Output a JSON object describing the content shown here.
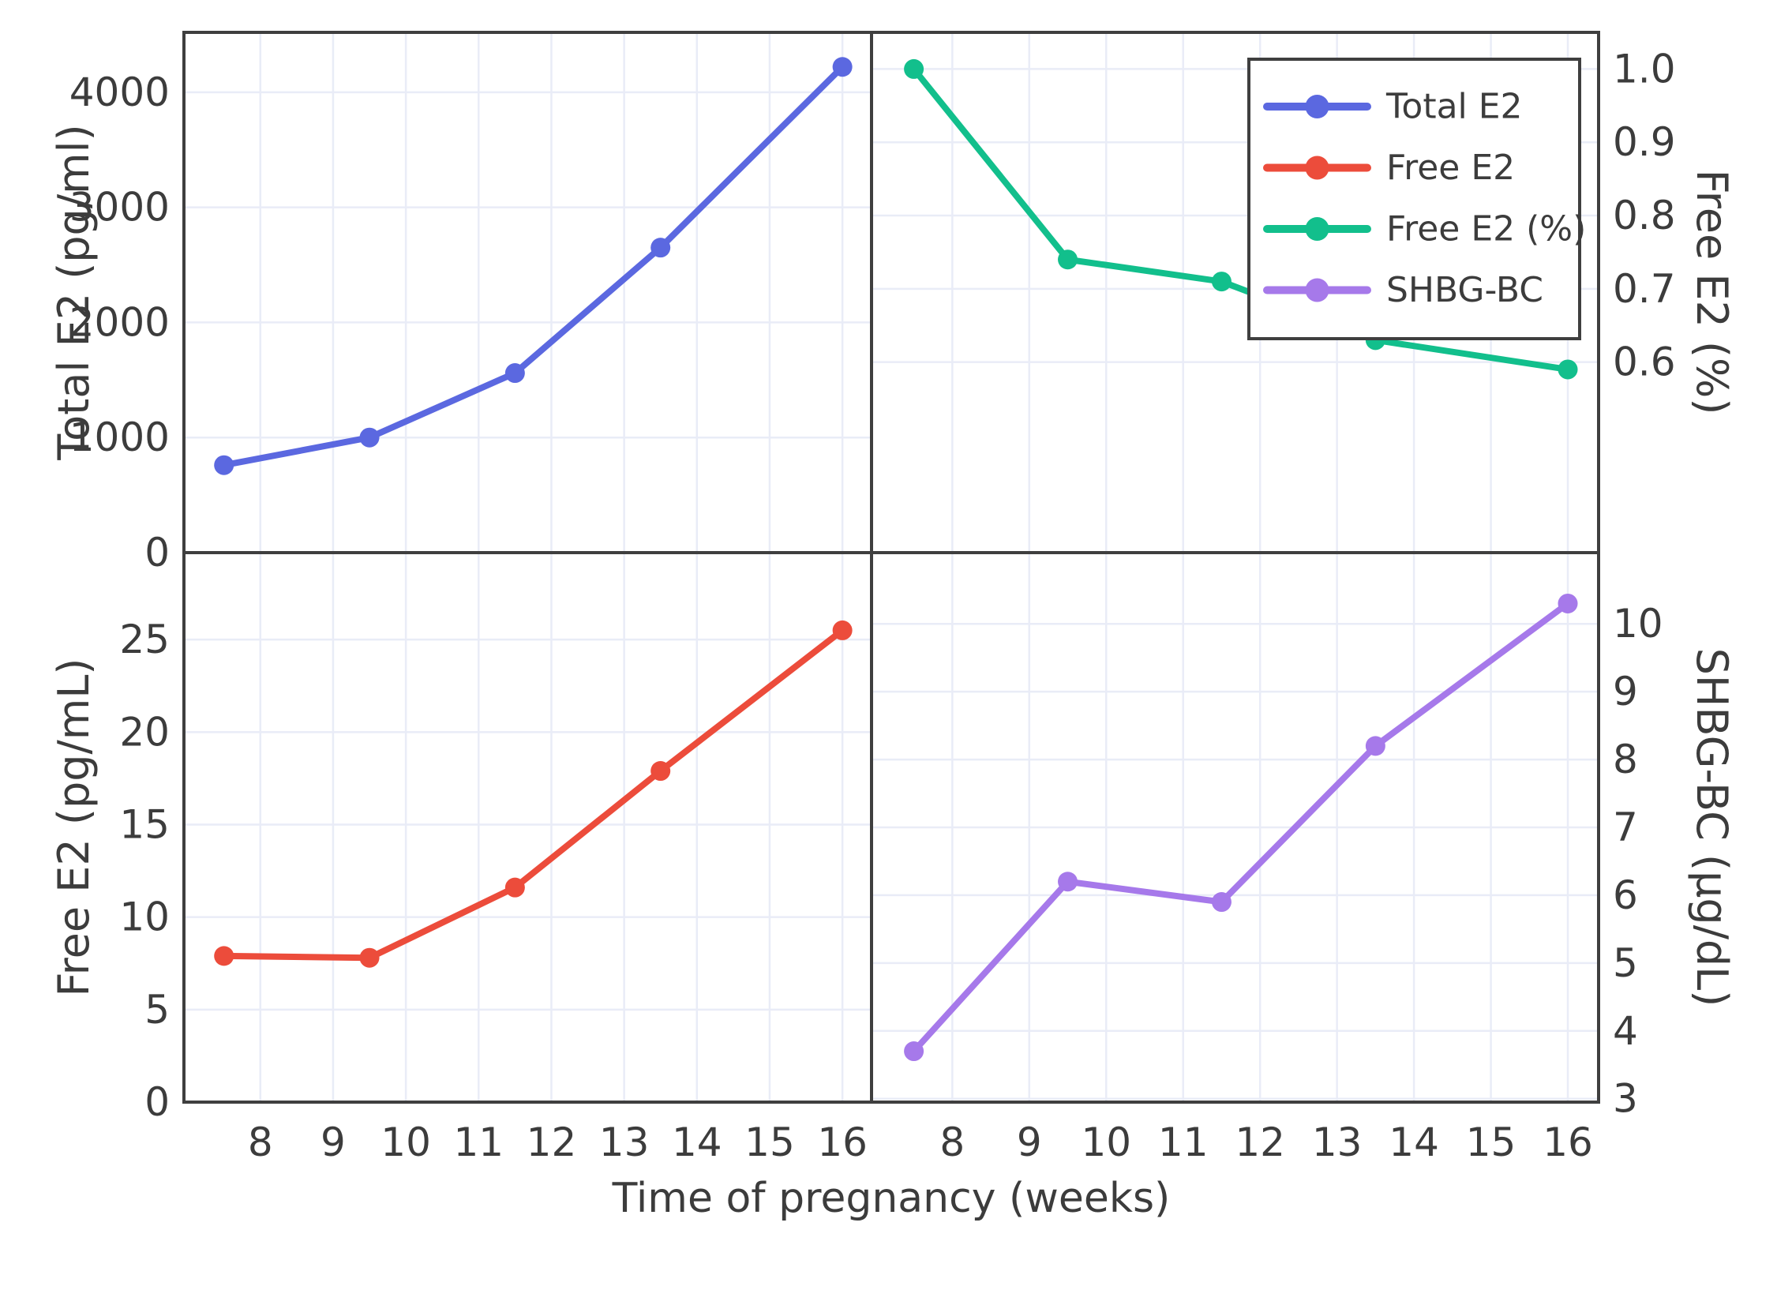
{
  "figure": {
    "xlabel": "Time of pregnancy (weeks)",
    "background": "#ffffff",
    "axis_color": "#3f3f3f",
    "text_color": "#3c3c3c",
    "grid_color": "#e9ecf7",
    "xticks": [
      8,
      9,
      10,
      11,
      12,
      13,
      14,
      15,
      16
    ],
    "xtick_labels": [
      "8",
      "9",
      "10",
      "11",
      "12",
      "13",
      "14",
      "15",
      "16"
    ],
    "xlim": [
      6.95,
      16.4
    ]
  },
  "legend": {
    "position": "top-right-panel",
    "items": [
      {
        "label": "Total E2",
        "color": "#5b68e0"
      },
      {
        "label": "Free E2",
        "color": "#ec4c3b"
      },
      {
        "label": "Free E2 (%)",
        "color": "#12bf8c"
      },
      {
        "label": "SHBG-BC",
        "color": "#a679ea"
      }
    ]
  },
  "chart_data": [
    {
      "type": "line",
      "series_name": "Total E2",
      "panel": "top-left",
      "ylabel": "Total E2 (pg/ml)",
      "ylabel_side": "left",
      "color": "#5b68e0",
      "x": [
        7.5,
        9.5,
        11.5,
        13.5,
        16
      ],
      "y": [
        760,
        1000,
        1560,
        2650,
        4220
      ],
      "ylim": [
        0,
        4520
      ],
      "yticks": [
        0,
        1000,
        2000,
        3000,
        4000
      ],
      "ytick_labels": [
        "0",
        "1000",
        "2000",
        "3000",
        "4000"
      ],
      "grid": true
    },
    {
      "type": "line",
      "series_name": "Free E2 (%)",
      "panel": "top-right",
      "ylabel": "Free E2 (%)",
      "ylabel_side": "right",
      "color": "#12bf8c",
      "x": [
        7.5,
        9.5,
        11.5,
        13.5,
        16
      ],
      "y": [
        1.0,
        0.74,
        0.71,
        0.63,
        0.59
      ],
      "ylim": [
        0.34,
        1.05
      ],
      "yticks": [
        0.6,
        0.7,
        0.8,
        0.9,
        1.0
      ],
      "ytick_labels": [
        "0.6",
        "0.7",
        "0.8",
        "0.9",
        "1.0"
      ],
      "grid": true
    },
    {
      "type": "line",
      "series_name": "Free E2",
      "panel": "bottom-left",
      "ylabel": "Free E2 (pg/mL)",
      "ylabel_side": "left",
      "color": "#ec4c3b",
      "x": [
        7.5,
        9.5,
        11.5,
        13.5,
        16
      ],
      "y": [
        7.9,
        7.8,
        11.6,
        17.9,
        25.5
      ],
      "ylim": [
        0,
        29.7
      ],
      "yticks": [
        0,
        5,
        10,
        15,
        20,
        25
      ],
      "ytick_labels": [
        "0",
        "5",
        "10",
        "15",
        "20",
        "25"
      ],
      "grid": true
    },
    {
      "type": "line",
      "series_name": "SHBG-BC",
      "panel": "bottom-right",
      "ylabel": "SHBG-BC (µg/dL)",
      "ylabel_side": "right",
      "color": "#a679ea",
      "x": [
        7.5,
        9.5,
        11.5,
        13.5,
        16
      ],
      "y": [
        3.7,
        6.2,
        5.9,
        8.2,
        10.3
      ],
      "ylim": [
        2.95,
        11.05
      ],
      "yticks": [
        3,
        4,
        5,
        6,
        7,
        8,
        9,
        10
      ],
      "ytick_labels": [
        "3",
        "4",
        "5",
        "6",
        "7",
        "8",
        "9",
        "10"
      ],
      "grid": true
    }
  ]
}
